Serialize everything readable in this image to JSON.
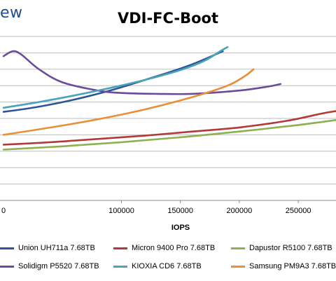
{
  "brand": "ew",
  "chart_data": {
    "type": "line",
    "title": "VDI-FC-Boot",
    "xlabel": "IOPS",
    "ylabel": "",
    "xlim": [
      -3000,
      282000
    ],
    "ylim": [
      0,
      10
    ],
    "grid": true,
    "x_ticks": [
      "100000",
      "150000",
      "200000",
      "250000"
    ],
    "x_tick_values": [
      100000,
      150000,
      200000,
      250000
    ],
    "legend_position": "bottom",
    "series": [
      {
        "name": "Union UH711a 7.68TB",
        "color": "#2E5597",
        "x": [
          0,
          20000,
          40000,
          60000,
          80000,
          100000,
          120000,
          140000,
          160000,
          175000,
          186000
        ],
        "y": [
          5.4,
          5.6,
          5.85,
          6.15,
          6.5,
          6.9,
          7.35,
          7.8,
          8.3,
          8.75,
          9.1
        ]
      },
      {
        "name": "Micron 9400 Pro 7.68TB",
        "color": "#B33A3A",
        "x": [
          0,
          40000,
          80000,
          120000,
          160000,
          200000,
          240000,
          270000,
          282000
        ],
        "y": [
          3.4,
          3.55,
          3.75,
          3.95,
          4.2,
          4.45,
          4.85,
          5.3,
          5.45
        ]
      },
      {
        "name": "Dapustor R5100 7.68TB",
        "color": "#8BB150",
        "x": [
          0,
          50000,
          100000,
          150000,
          200000,
          250000,
          282000
        ],
        "y": [
          3.1,
          3.3,
          3.55,
          3.85,
          4.2,
          4.6,
          4.9
        ]
      },
      {
        "name": "Solidigm P5520 7.68TB",
        "color": "#6B4C9A",
        "x": [
          0,
          8000,
          15000,
          30000,
          50000,
          80000,
          100000,
          130000,
          160000,
          200000,
          225000,
          235000
        ],
        "y": [
          8.8,
          9.1,
          8.9,
          8.0,
          7.2,
          6.7,
          6.55,
          6.5,
          6.5,
          6.7,
          6.95,
          7.1
        ]
      },
      {
        "name": "KIOXIA CD6 7.68TB",
        "color": "#4AA3B8",
        "x": [
          0,
          30000,
          60000,
          90000,
          120000,
          150000,
          170000,
          185000,
          190000
        ],
        "y": [
          5.65,
          6.0,
          6.4,
          6.85,
          7.35,
          7.95,
          8.5,
          9.15,
          9.35
        ]
      },
      {
        "name": "Samsung PM9A3 7.68TB",
        "color": "#E88F3A",
        "x": [
          0,
          40000,
          80000,
          120000,
          160000,
          190000,
          205000,
          212000
        ],
        "y": [
          4.0,
          4.45,
          4.95,
          5.55,
          6.3,
          7.0,
          7.6,
          8.0
        ]
      }
    ]
  }
}
